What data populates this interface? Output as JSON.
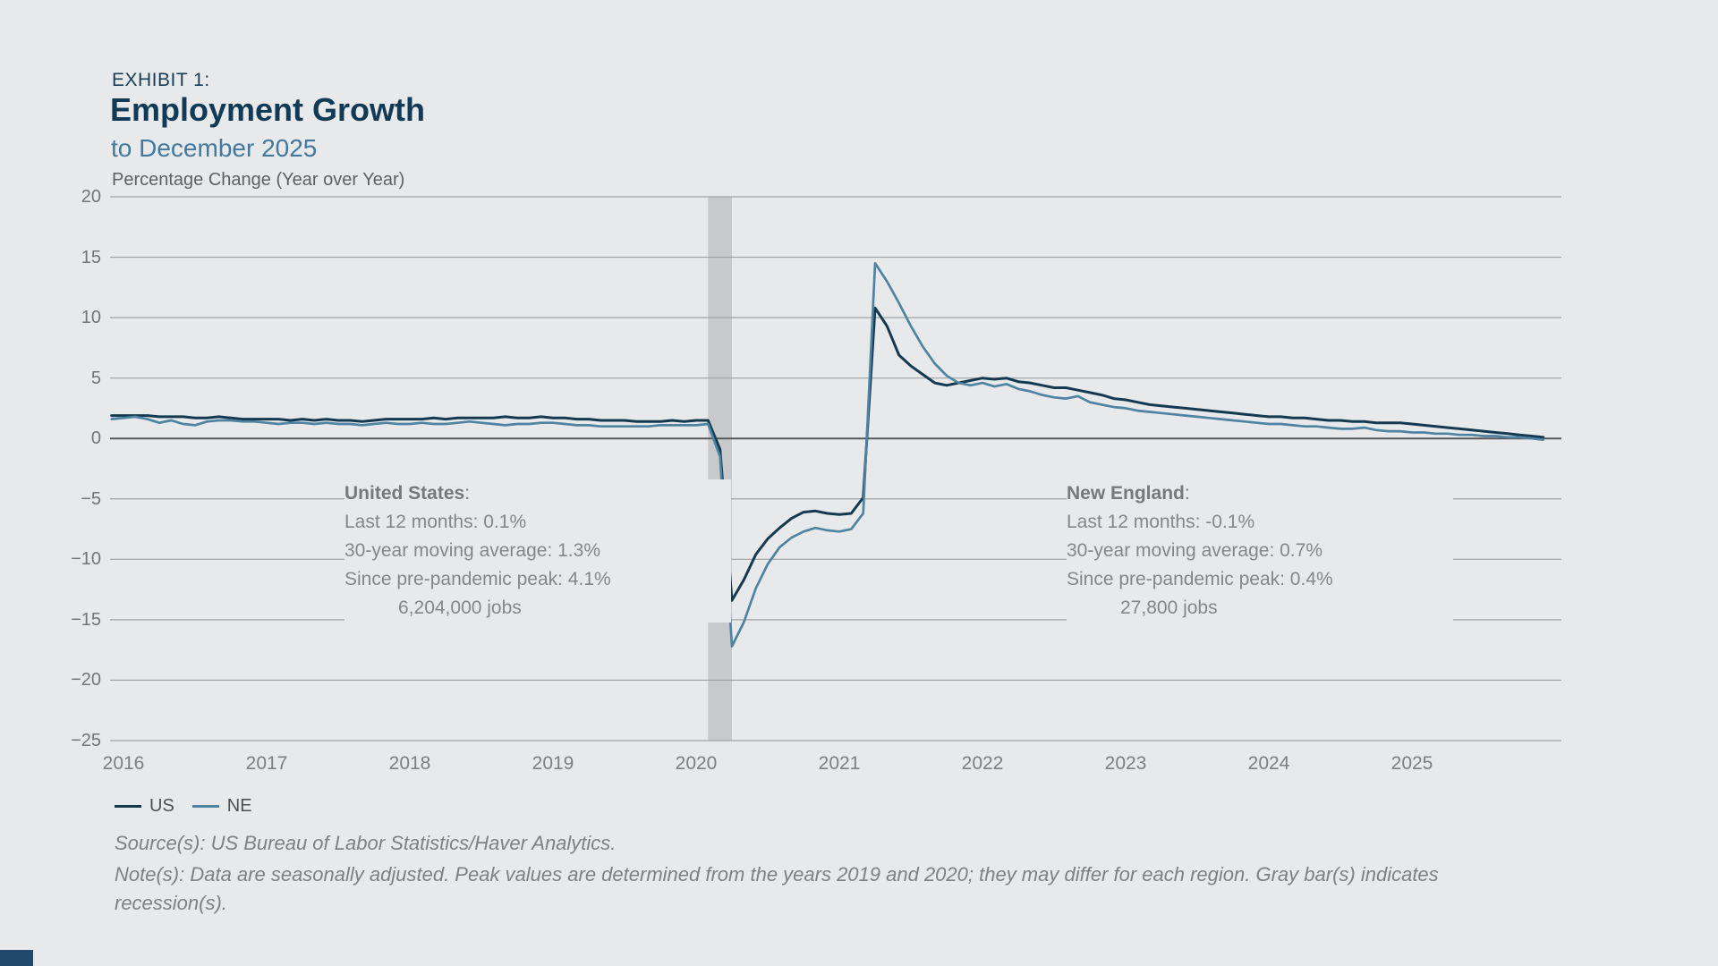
{
  "header": {
    "exhibit_label": "EXHIBIT 1:",
    "title": "Employment Growth",
    "subtitle": "to December 2025",
    "axis_label": "Percentage Change (Year over Year)"
  },
  "annotations": {
    "us": {
      "title": "United States",
      "title_suffix": ":",
      "lines": [
        "Last 12 months:  0.1%",
        "30-year moving average: 1.3%",
        "Since pre-pandemic peak: 4.1%"
      ],
      "jobs": "6,204,000 jobs"
    },
    "ne": {
      "title": "New England",
      "title_suffix": ":",
      "lines": [
        "Last 12 months:  -0.1%",
        "30-year moving average: 0.7%",
        "Since pre-pandemic peak: 0.4%"
      ],
      "jobs": "27,800 jobs"
    }
  },
  "footer": {
    "source": "Source(s): US Bureau of Labor Statistics/Haver Analytics.",
    "note_lines": [
      "Note(s): Data are seasonally adjusted. Peak values are determined from the years 2019 and 2020; they may differ for each region. Gray bar(s) indicates",
      "recession(s)."
    ]
  },
  "colors": {
    "background": "#e8e9ea",
    "us_line": "#143a52",
    "ne_line": "#4e84a2",
    "gridline": "#a0a1a3",
    "zero_line": "#58595c",
    "recession_band": "#c7c9ca",
    "title_navy": "#113a57",
    "subtitle_blue": "#43799e",
    "text_gray": "#85868a"
  },
  "chart_data": {
    "type": "line",
    "title": "Employment Growth",
    "subtitle": "to December 2025",
    "ylabel": "Percentage Change (Year over Year)",
    "xlabel": "",
    "grid": "horizontal",
    "legend_position": "bottom-left",
    "ylim": [
      -25,
      20
    ],
    "y_ticks": [
      20,
      15,
      10,
      5,
      0,
      -5,
      -10,
      -15,
      -20,
      -25
    ],
    "y_tick_labels": [
      "20",
      "15",
      "10",
      "5",
      "0",
      "−5",
      "−10",
      "−15",
      "−20",
      "−25"
    ],
    "x_tick_years": [
      "2016",
      "2017",
      "2018",
      "2019",
      "2020",
      "2021",
      "2022",
      "2023",
      "2024",
      "2025"
    ],
    "x_start": "2015-12",
    "frequency": "monthly",
    "x_end": "2025-12",
    "recession_bands": [
      {
        "start": "2020-02",
        "end": "2020-04"
      }
    ],
    "series": [
      {
        "name": "US",
        "color": "#143a52",
        "values": [
          1.9,
          1.9,
          1.9,
          1.9,
          1.8,
          1.8,
          1.8,
          1.7,
          1.7,
          1.8,
          1.7,
          1.6,
          1.6,
          1.6,
          1.6,
          1.5,
          1.6,
          1.5,
          1.6,
          1.5,
          1.5,
          1.4,
          1.5,
          1.6,
          1.6,
          1.6,
          1.6,
          1.7,
          1.6,
          1.7,
          1.7,
          1.7,
          1.7,
          1.8,
          1.7,
          1.7,
          1.8,
          1.7,
          1.7,
          1.6,
          1.6,
          1.5,
          1.5,
          1.5,
          1.4,
          1.4,
          1.4,
          1.5,
          1.4,
          1.5,
          1.5,
          -0.9,
          -13.4,
          -11.7,
          -9.6,
          -8.3,
          -7.4,
          -6.6,
          -6.1,
          -6.0,
          -6.2,
          -6.3,
          -6.2,
          -4.9,
          10.8,
          9.3,
          6.9,
          6.0,
          5.3,
          4.6,
          4.4,
          4.6,
          4.8,
          5.0,
          4.9,
          5.0,
          4.7,
          4.6,
          4.4,
          4.2,
          4.2,
          4.0,
          3.8,
          3.6,
          3.3,
          3.2,
          3.0,
          2.8,
          2.7,
          2.6,
          2.5,
          2.4,
          2.3,
          2.2,
          2.1,
          2.0,
          1.9,
          1.8,
          1.8,
          1.7,
          1.7,
          1.6,
          1.5,
          1.5,
          1.4,
          1.4,
          1.3,
          1.3,
          1.3,
          1.2,
          1.1,
          1.0,
          0.9,
          0.8,
          0.7,
          0.6,
          0.5,
          0.4,
          0.3,
          0.2,
          0.1
        ]
      },
      {
        "name": "NE",
        "color": "#4e84a2",
        "values": [
          1.6,
          1.7,
          1.8,
          1.6,
          1.3,
          1.5,
          1.2,
          1.1,
          1.4,
          1.5,
          1.5,
          1.4,
          1.4,
          1.3,
          1.2,
          1.3,
          1.3,
          1.2,
          1.3,
          1.2,
          1.2,
          1.1,
          1.2,
          1.3,
          1.2,
          1.2,
          1.3,
          1.2,
          1.2,
          1.3,
          1.4,
          1.3,
          1.2,
          1.1,
          1.2,
          1.2,
          1.3,
          1.3,
          1.2,
          1.1,
          1.1,
          1.0,
          1.0,
          1.0,
          1.0,
          1.0,
          1.1,
          1.1,
          1.1,
          1.1,
          1.2,
          -1.5,
          -17.2,
          -15.2,
          -12.4,
          -10.4,
          -9.0,
          -8.2,
          -7.7,
          -7.4,
          -7.6,
          -7.7,
          -7.5,
          -6.2,
          14.5,
          13.0,
          11.2,
          9.3,
          7.6,
          6.2,
          5.2,
          4.6,
          4.4,
          4.6,
          4.3,
          4.5,
          4.1,
          3.9,
          3.6,
          3.4,
          3.3,
          3.5,
          3.0,
          2.8,
          2.6,
          2.5,
          2.3,
          2.2,
          2.1,
          2.0,
          1.9,
          1.8,
          1.7,
          1.6,
          1.5,
          1.4,
          1.3,
          1.2,
          1.2,
          1.1,
          1.0,
          1.0,
          0.9,
          0.8,
          0.8,
          0.9,
          0.7,
          0.6,
          0.6,
          0.5,
          0.5,
          0.4,
          0.4,
          0.3,
          0.3,
          0.2,
          0.2,
          0.1,
          0.1,
          0.0,
          -0.1
        ]
      }
    ]
  }
}
